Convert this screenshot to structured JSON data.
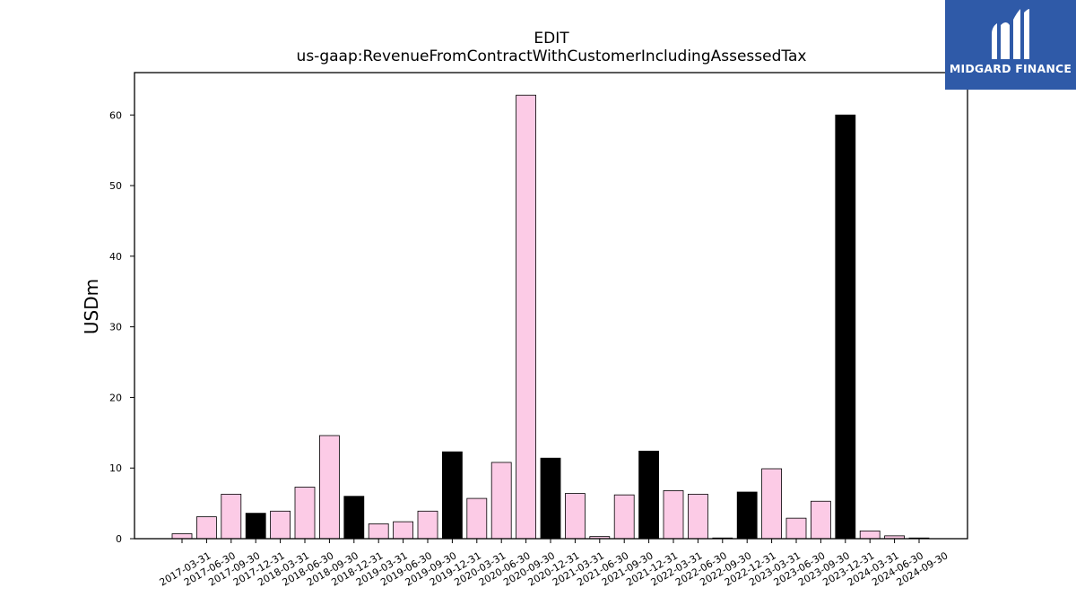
{
  "chart_data": {
    "type": "bar",
    "title": "EDIT",
    "subtitle": "us-gaap:RevenueFromContractWithCustomerIncludingAssessedTax",
    "xlabel": "",
    "ylabel": "USDm",
    "ylim": [
      0,
      66
    ],
    "yticks": [
      0,
      10,
      20,
      30,
      40,
      50,
      60
    ],
    "grid": false,
    "colors": {
      "quarter": "#fccbe6",
      "annual": "#000000",
      "edge": "#000000"
    },
    "categories": [
      "2017-03-31",
      "2017-06-30",
      "2017-09-30",
      "2017-12-31",
      "2018-03-31",
      "2018-06-30",
      "2018-09-30",
      "2018-12-31",
      "2019-03-31",
      "2019-06-30",
      "2019-09-30",
      "2019-12-31",
      "2020-03-31",
      "2020-06-30",
      "2020-09-30",
      "2020-12-31",
      "2021-03-31",
      "2021-06-30",
      "2021-09-30",
      "2021-12-31",
      "2022-03-31",
      "2022-06-30",
      "2022-09-30",
      "2022-12-31",
      "2023-03-31",
      "2023-06-30",
      "2023-09-30",
      "2023-12-31",
      "2024-03-31",
      "2024-06-30",
      "2024-09-30"
    ],
    "values": [
      0.7,
      3.1,
      6.3,
      3.6,
      3.9,
      7.3,
      14.6,
      6.0,
      2.1,
      2.4,
      3.9,
      12.3,
      5.7,
      10.8,
      62.8,
      11.4,
      6.4,
      0.3,
      6.2,
      12.4,
      6.8,
      6.3,
      0.1,
      6.6,
      9.9,
      2.9,
      5.3,
      60.0,
      1.1,
      0.4,
      0.1
    ],
    "annual": [
      false,
      false,
      false,
      true,
      false,
      false,
      false,
      true,
      false,
      false,
      false,
      true,
      false,
      false,
      false,
      true,
      false,
      false,
      false,
      true,
      false,
      false,
      false,
      true,
      false,
      false,
      false,
      true,
      false,
      false,
      false
    ]
  },
  "logo": {
    "text": "MIDGARD FINANCE",
    "icon": "midgard-logo-icon",
    "background": "#2f5aa8"
  }
}
